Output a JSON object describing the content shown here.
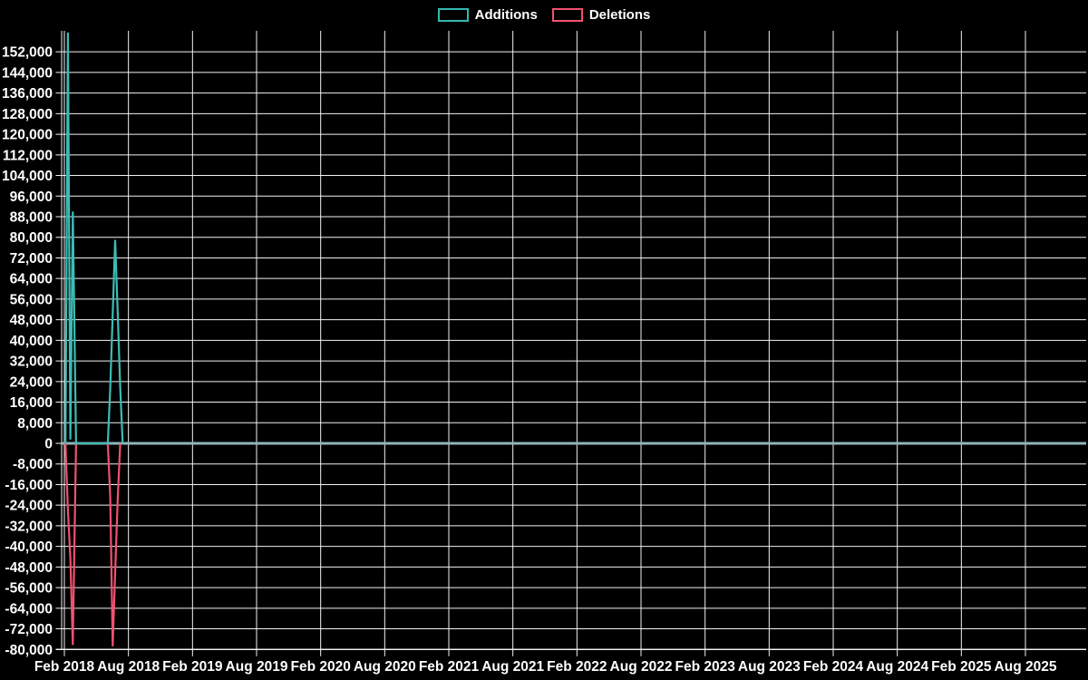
{
  "legend": {
    "position": "top-center",
    "items": [
      {
        "label": "Additions",
        "color": "#35b8af"
      },
      {
        "label": "Deletions",
        "color": "#f0516f"
      }
    ]
  },
  "chart_data": {
    "type": "line",
    "title": "",
    "xlabel": "",
    "ylabel": "",
    "background": "#000000",
    "grid_color": "#f2f2f2",
    "text_color": "#ffffff",
    "baseline_color": "#8fb5ba",
    "x_tick_labels": [
      "Feb 2018",
      "Aug 2018",
      "Feb 2019",
      "Aug 2019",
      "Feb 2020",
      "Aug 2020",
      "Feb 2021",
      "Aug 2021",
      "Feb 2022",
      "Aug 2022",
      "Feb 2023",
      "Aug 2023",
      "Feb 2024",
      "Aug 2024",
      "Feb 2025",
      "Aug 2025"
    ],
    "y_axis": {
      "min": -80000,
      "max": 160000,
      "tick_step": 8000,
      "tick_min": -80000,
      "tick_max": 152000
    },
    "series": [
      {
        "name": "Additions",
        "color": "#3cbcb4",
        "points": [
          [
            "2018-02-04",
            0
          ],
          [
            "2018-02-11",
            159500
          ],
          [
            "2018-02-18",
            1500
          ],
          [
            "2018-02-25",
            90000
          ],
          [
            "2018-03-04",
            0
          ],
          [
            "2018-06-03",
            0
          ],
          [
            "2018-06-10",
            21500
          ],
          [
            "2018-06-17",
            50000
          ],
          [
            "2018-06-24",
            79000
          ],
          [
            "2018-07-01",
            50000
          ],
          [
            "2018-07-08",
            21500
          ],
          [
            "2018-07-15",
            0
          ]
        ]
      },
      {
        "name": "Deletions",
        "color": "#f0516f",
        "points": [
          [
            "2018-02-04",
            0
          ],
          [
            "2018-02-11",
            -26000
          ],
          [
            "2018-02-18",
            -44500
          ],
          [
            "2018-02-25",
            -78300
          ],
          [
            "2018-03-04",
            0
          ],
          [
            "2018-06-03",
            0
          ],
          [
            "2018-06-10",
            -21000
          ],
          [
            "2018-06-17",
            -78800
          ],
          [
            "2018-06-24",
            -50300
          ],
          [
            "2018-07-01",
            -21000
          ],
          [
            "2018-07-08",
            0
          ]
        ]
      }
    ]
  }
}
